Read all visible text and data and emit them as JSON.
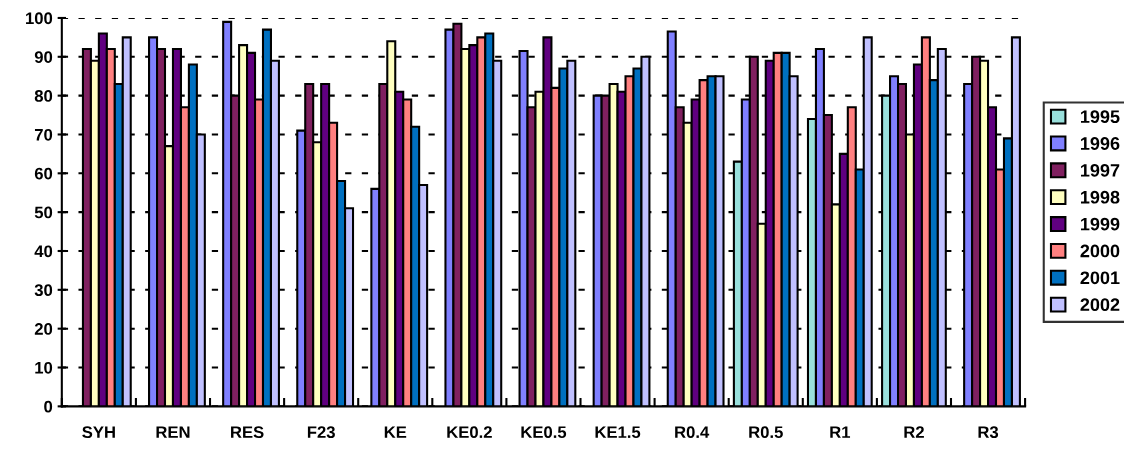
{
  "chart_data": {
    "type": "bar",
    "categories": [
      "SYH",
      "REN",
      "RES",
      "F23",
      "KE",
      "KE0.2",
      "KE0.5",
      "KE1.5",
      "R0.4",
      "R0.5",
      "R1",
      "R2",
      "R3"
    ],
    "series": [
      {
        "name": "1995",
        "color": "#99e0dc",
        "values": [
          null,
          null,
          null,
          null,
          null,
          null,
          null,
          null,
          null,
          63,
          74,
          80,
          null
        ]
      },
      {
        "name": "1996",
        "color": "#8080ff",
        "values": [
          null,
          95,
          99,
          71,
          56,
          97,
          91.5,
          80,
          96.5,
          79,
          92,
          85,
          83
        ]
      },
      {
        "name": "1997",
        "color": "#802060",
        "values": [
          92,
          92,
          80,
          83,
          83,
          98.5,
          77,
          80,
          77,
          90,
          75,
          83,
          90
        ]
      },
      {
        "name": "1998",
        "color": "#ffffc0",
        "values": [
          89,
          67,
          93,
          68,
          94,
          92,
          81,
          83,
          73,
          47,
          52,
          70,
          89
        ]
      },
      {
        "name": "1999",
        "color": "#600080",
        "values": [
          96,
          92,
          91,
          83,
          81,
          93,
          95,
          81,
          79,
          89,
          65,
          88,
          77
        ]
      },
      {
        "name": "2000",
        "color": "#ff8080",
        "values": [
          92,
          77,
          79,
          73,
          79,
          95,
          82,
          85,
          84,
          91,
          77,
          95,
          61
        ]
      },
      {
        "name": "2001",
        "color": "#0070c0",
        "values": [
          83,
          88,
          97,
          58,
          72,
          96,
          87,
          87,
          85,
          91,
          61,
          84,
          69
        ]
      },
      {
        "name": "2002",
        "color": "#c0c0ff",
        "values": [
          95,
          70,
          89,
          51,
          57,
          89,
          89,
          90,
          85,
          85,
          95,
          92,
          95
        ]
      }
    ],
    "ylim": [
      0,
      100
    ],
    "yticks": [
      0,
      10,
      20,
      30,
      40,
      50,
      60,
      70,
      80,
      90,
      100
    ],
    "grid": "y",
    "legend": "right"
  }
}
